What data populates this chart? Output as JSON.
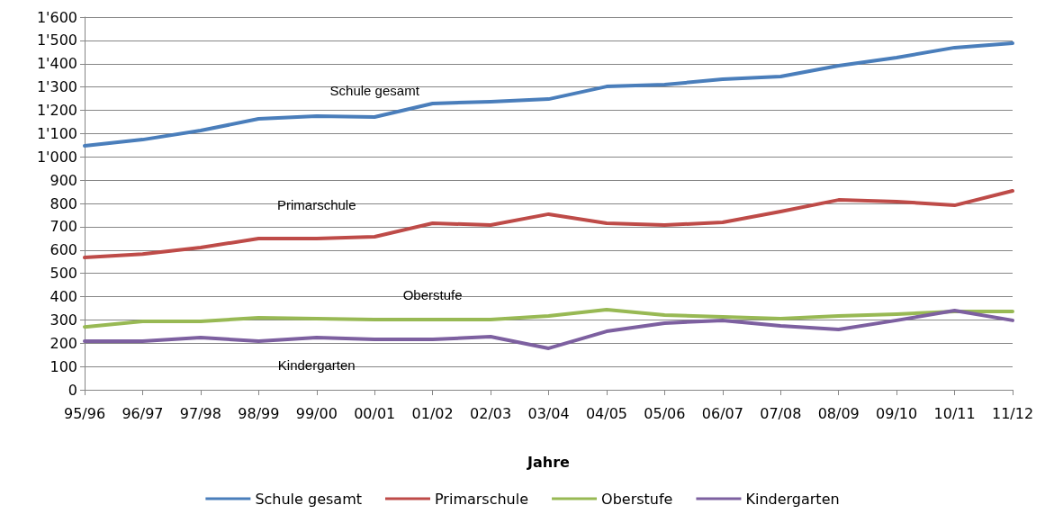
{
  "chart_data": {
    "type": "line",
    "xlabel": "Jahre",
    "categories": [
      "95/96",
      "96/97",
      "97/98",
      "98/99",
      "99/00",
      "00/01",
      "01/02",
      "02/03",
      "03/04",
      "04/05",
      "05/06",
      "06/07",
      "07/08",
      "08/09",
      "09/10",
      "10/11",
      "11/12"
    ],
    "series": [
      {
        "name": "Schule gesamt",
        "color": "#4a7ebb",
        "values": [
          1047,
          1074,
          1113,
          1163,
          1175,
          1171,
          1229,
          1237,
          1248,
          1302,
          1310,
          1333,
          1345,
          1391,
          1426,
          1469,
          1488
        ]
      },
      {
        "name": "Primarschule",
        "color": "#be4b48",
        "values": [
          568,
          583,
          611,
          649,
          649,
          657,
          715,
          707,
          754,
          715,
          707,
          719,
          765,
          815,
          808,
          792,
          854
        ]
      },
      {
        "name": "Oberstufe",
        "color": "#98b954",
        "values": [
          270,
          294,
          294,
          309,
          305,
          301,
          301,
          301,
          317,
          344,
          321,
          313,
          305,
          317,
          325,
          336,
          336
        ]
      },
      {
        "name": "Kindergarten",
        "color": "#7d60a0",
        "values": [
          209,
          209,
          224,
          209,
          224,
          216,
          216,
          228,
          178,
          251,
          286,
          298,
          274,
          259,
          298,
          340,
          298
        ]
      }
    ],
    "annotations": [
      "Schule gesamt",
      "Primarschule",
      "Oberstufe",
      "Kindergarten"
    ],
    "ylim": [
      0,
      1600
    ],
    "yticks": [
      0,
      100,
      200,
      300,
      400,
      500,
      600,
      700,
      800,
      900,
      {
        "value": 1000,
        "label": "1'000"
      },
      {
        "value": 1100,
        "label": "1'100"
      },
      {
        "value": 1200,
        "label": "1'200"
      },
      {
        "value": 1300,
        "label": "1'300"
      },
      {
        "value": 1400,
        "label": "1'400"
      },
      {
        "value": 1500,
        "label": "1'500"
      },
      {
        "value": 1600,
        "label": "1'600"
      }
    ],
    "grid": "y",
    "legend": "bottom",
    "marker": "none",
    "line_style": "solid"
  }
}
